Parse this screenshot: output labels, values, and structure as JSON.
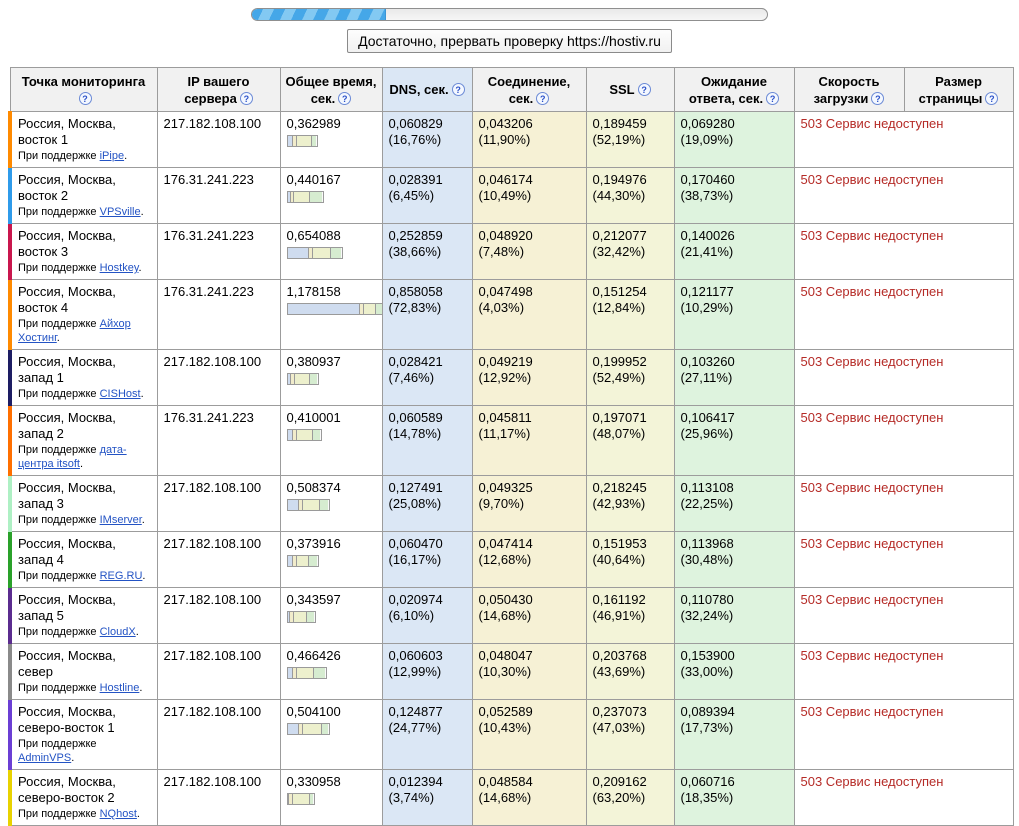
{
  "progress_bar": {
    "percent": 26
  },
  "stop_button": {
    "label": "Достаточно, прервать проверку https://hostiv.ru"
  },
  "colors": {
    "dns_column": "#dbe7f5",
    "connection_column": "#f6f1d5",
    "ssl_column": "#f3f4d8",
    "wait_column": "#def3de",
    "error_text": "#b52b27",
    "link": "#2353c4",
    "progress_fill": "#45a7e8"
  },
  "table": {
    "headers": [
      {
        "label": "Точка мониторинга"
      },
      {
        "label": "IP вашего сервера"
      },
      {
        "label": "Общее время, сек."
      },
      {
        "label": "DNS, сек."
      },
      {
        "label": "Соединение, сек."
      },
      {
        "label": "SSL"
      },
      {
        "label": "Ожидание ответа, сек."
      },
      {
        "label": "Скорость загрузки"
      },
      {
        "label": "Размер страницы"
      }
    ],
    "rows": [
      {
        "stripe": "#ff8a00",
        "location": "Россия, Москва, восток 1",
        "supporter_prefix": "При поддержке",
        "supporter_link": "iPipe",
        "ip": "217.182.108.100",
        "total": "0,362989",
        "total_sec": 0.362989,
        "dns": {
          "text": "0,060829 (16,76%)",
          "pct": 16.76
        },
        "conn": {
          "text": "0,043206 (11,90%)",
          "pct": 11.9
        },
        "ssl": {
          "text": "0,189459 (52,19%)",
          "pct": 52.19
        },
        "wait": {
          "text": "0,069280 (19,09%)",
          "pct": 19.09
        },
        "error": "503 Сервис недоступен"
      },
      {
        "stripe": "#2f9bea",
        "location": "Россия, Москва, восток 2",
        "supporter_prefix": "При поддержке",
        "supporter_link": "VPSville",
        "ip": "176.31.241.223",
        "total": "0,440167",
        "total_sec": 0.440167,
        "dns": {
          "text": "0,028391 (6,45%)",
          "pct": 6.45
        },
        "conn": {
          "text": "0,046174 (10,49%)",
          "pct": 10.49
        },
        "ssl": {
          "text": "0,194976 (44,30%)",
          "pct": 44.3
        },
        "wait": {
          "text": "0,170460 (38,73%)",
          "pct": 38.73
        },
        "error": "503 Сервис недоступен"
      },
      {
        "stripe": "#c9174d",
        "location": "Россия, Москва, восток 3",
        "supporter_prefix": "При поддержке",
        "supporter_link": "Hostkey",
        "ip": "176.31.241.223",
        "total": "0,654088",
        "total_sec": 0.654088,
        "dns": {
          "text": "0,252859 (38,66%)",
          "pct": 38.66
        },
        "conn": {
          "text": "0,048920 (7,48%)",
          "pct": 7.48
        },
        "ssl": {
          "text": "0,212077 (32,42%)",
          "pct": 32.42
        },
        "wait": {
          "text": "0,140026 (21,41%)",
          "pct": 21.41
        },
        "error": "503 Сервис недоступен"
      },
      {
        "stripe": "#ff8a00",
        "location": "Россия, Москва, восток 4",
        "supporter_prefix": "При поддержке",
        "supporter_link": "Айхор Хостинг",
        "ip": "176.31.241.223",
        "total": "1,178158",
        "total_sec": 1.178158,
        "dns": {
          "text": "0,858058 (72,83%)",
          "pct": 72.83
        },
        "conn": {
          "text": "0,047498 (4,03%)",
          "pct": 4.03
        },
        "ssl": {
          "text": "0,151254 (12,84%)",
          "pct": 12.84
        },
        "wait": {
          "text": "0,121177 (10,29%)",
          "pct": 10.29
        },
        "error": "503 Сервис недоступен"
      },
      {
        "stripe": "#1d1d63",
        "location": "Россия, Москва, запад 1",
        "supporter_prefix": "При поддержке",
        "supporter_link": "CISHost",
        "ip": "217.182.108.100",
        "total": "0,380937",
        "total_sec": 0.380937,
        "dns": {
          "text": "0,028421 (7,46%)",
          "pct": 7.46
        },
        "conn": {
          "text": "0,049219 (12,92%)",
          "pct": 12.92
        },
        "ssl": {
          "text": "0,199952 (52,49%)",
          "pct": 52.49
        },
        "wait": {
          "text": "0,103260 (27,11%)",
          "pct": 27.11
        },
        "error": "503 Сервис недоступен"
      },
      {
        "stripe": "#ff6f00",
        "location": "Россия, Москва, запад 2",
        "supporter_prefix": "При поддержке",
        "supporter_link": "дата-центра itsoft",
        "ip": "176.31.241.223",
        "total": "0,410001",
        "total_sec": 0.410001,
        "dns": {
          "text": "0,060589 (14,78%)",
          "pct": 14.78
        },
        "conn": {
          "text": "0,045811 (11,17%)",
          "pct": 11.17
        },
        "ssl": {
          "text": "0,197071 (48,07%)",
          "pct": 48.07
        },
        "wait": {
          "text": "0,106417 (25,96%)",
          "pct": 25.96
        },
        "error": "503 Сервис недоступен"
      },
      {
        "stripe": "#aef0c4",
        "location": "Россия, Москва, запад 3",
        "supporter_prefix": "При поддержке",
        "supporter_link": "IMserver",
        "ip": "217.182.108.100",
        "total": "0,508374",
        "total_sec": 0.508374,
        "dns": {
          "text": "0,127491 (25,08%)",
          "pct": 25.08
        },
        "conn": {
          "text": "0,049325 (9,70%)",
          "pct": 9.7
        },
        "ssl": {
          "text": "0,218245 (42,93%)",
          "pct": 42.93
        },
        "wait": {
          "text": "0,113108 (22,25%)",
          "pct": 22.25
        },
        "error": "503 Сервис недоступен"
      },
      {
        "stripe": "#2aa12a",
        "location": "Россия, Москва, запад 4",
        "supporter_prefix": "При поддержке",
        "supporter_link": "REG.RU",
        "ip": "217.182.108.100",
        "total": "0,373916",
        "total_sec": 0.373916,
        "dns": {
          "text": "0,060470 (16,17%)",
          "pct": 16.17
        },
        "conn": {
          "text": "0,047414 (12,68%)",
          "pct": 12.68
        },
        "ssl": {
          "text": "0,151953 (40,64%)",
          "pct": 40.64
        },
        "wait": {
          "text": "0,113968 (30,48%)",
          "pct": 30.48
        },
        "error": "503 Сервис недоступен"
      },
      {
        "stripe": "#5b2c8f",
        "location": "Россия, Москва, запад 5",
        "supporter_prefix": "При поддержке",
        "supporter_link": "CloudX",
        "ip": "217.182.108.100",
        "total": "0,343597",
        "total_sec": 0.343597,
        "dns": {
          "text": "0,020974 (6,10%)",
          "pct": 6.1
        },
        "conn": {
          "text": "0,050430 (14,68%)",
          "pct": 14.68
        },
        "ssl": {
          "text": "0,161192 (46,91%)",
          "pct": 46.91
        },
        "wait": {
          "text": "0,110780 (32,24%)",
          "pct": 32.24
        },
        "error": "503 Сервис недоступен"
      },
      {
        "stripe": "#8a8a8a",
        "location": "Россия, Москва, север",
        "supporter_prefix": "При поддержке",
        "supporter_link": "Hostline",
        "ip": "217.182.108.100",
        "total": "0,466426",
        "total_sec": 0.466426,
        "dns": {
          "text": "0,060603 (12,99%)",
          "pct": 12.99
        },
        "conn": {
          "text": "0,048047 (10,30%)",
          "pct": 10.3
        },
        "ssl": {
          "text": "0,203768 (43,69%)",
          "pct": 43.69
        },
        "wait": {
          "text": "0,153900 (33,00%)",
          "pct": 33.0
        },
        "error": "503 Сервис недоступен"
      },
      {
        "stripe": "#6b3fd4",
        "location": "Россия, Москва, северо-восток 1",
        "supporter_prefix": "При поддержке",
        "supporter_link": "AdminVPS",
        "ip": "217.182.108.100",
        "total": "0,504100",
        "total_sec": 0.5041,
        "dns": {
          "text": "0,124877 (24,77%)",
          "pct": 24.77
        },
        "conn": {
          "text": "0,052589 (10,43%)",
          "pct": 10.43
        },
        "ssl": {
          "text": "0,237073 (47,03%)",
          "pct": 47.03
        },
        "wait": {
          "text": "0,089394 (17,73%)",
          "pct": 17.73
        },
        "error": "503 Сервис недоступен"
      },
      {
        "stripe": "#e8d200",
        "location": "Россия, Москва, северо-восток 2",
        "supporter_prefix": "При поддержке",
        "supporter_link": "NQhost",
        "ip": "217.182.108.100",
        "total": "0,330958",
        "total_sec": 0.330958,
        "dns": {
          "text": "0,012394 (3,74%)",
          "pct": 3.74
        },
        "conn": {
          "text": "0,048584 (14,68%)",
          "pct": 14.68
        },
        "ssl": {
          "text": "0,209162 (63,20%)",
          "pct": 63.2
        },
        "wait": {
          "text": "0,060716 (18,35%)",
          "pct": 18.35
        },
        "error": "503 Сервис недоступен"
      }
    ]
  }
}
